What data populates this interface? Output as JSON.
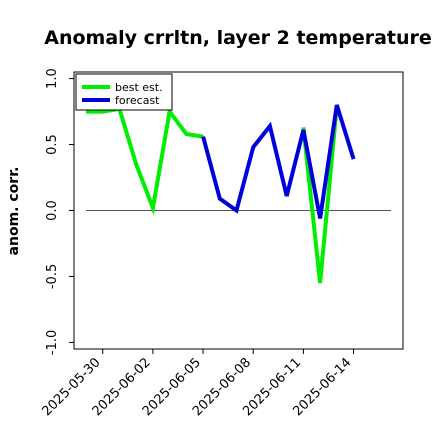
{
  "chart_data": {
    "type": "line",
    "title": "Anomaly crrltn, layer 2 temperature",
    "xlabel": "",
    "ylabel": "anom. corr.",
    "ylim": [
      -1.05,
      1.05
    ],
    "xlim": [
      "2025-05-29",
      "2025-06-16"
    ],
    "y_ticks": [
      -1.0,
      -0.5,
      0.0,
      0.5,
      1.0
    ],
    "y_tick_labels": [
      "-1.0",
      "-0.5",
      "0.0",
      "0.5",
      "1.0"
    ],
    "x_ticks": [
      "2025-05-30",
      "2025-06-02",
      "2025-06-05",
      "2025-06-08",
      "2025-06-11",
      "2025-06-14"
    ],
    "x_tick_labels": [
      "2025-05-30",
      "2025-06-02",
      "2025-06-05",
      "2025-06-08",
      "2025-06-11",
      "2025-06-14"
    ],
    "highlighted_tick": "2025-06-05",
    "highlight_color": "#2e8b2e",
    "zero_line": true,
    "grid": false,
    "legend_position": "top-left",
    "series": [
      {
        "name": "best est.",
        "color": "#00ee00",
        "x": [
          "2025-05-29",
          "2025-05-30",
          "2025-05-31",
          "2025-06-01",
          "2025-06-02",
          "2025-06-03",
          "2025-06-04",
          "2025-06-05"
        ],
        "values": [
          0.75,
          0.75,
          0.77,
          0.35,
          0.02,
          0.75,
          0.58,
          0.56
        ]
      },
      {
        "name": "forecast",
        "color": "#0000dd",
        "x": [
          "2025-06-05",
          "2025-06-06",
          "2025-06-07",
          "2025-06-08",
          "2025-06-09",
          "2025-06-10",
          "2025-06-11",
          "2025-06-12",
          "2025-06-13",
          "2025-06-14"
        ],
        "values": [
          0.56,
          0.09,
          0.0,
          0.48,
          0.64,
          0.11,
          0.61,
          -0.06,
          0.8,
          0.39
        ]
      }
    ],
    "overlap_segment": {
      "color": "#00ee00",
      "x": [
        "2025-06-11",
        "2025-06-12",
        "2025-06-13"
      ],
      "values": [
        0.63,
        -0.55,
        0.79
      ]
    }
  }
}
